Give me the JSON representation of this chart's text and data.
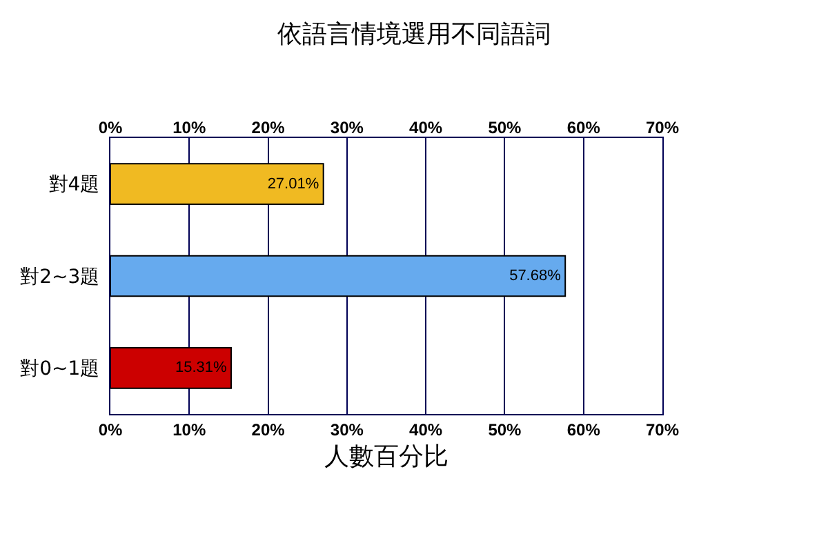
{
  "chart_data": {
    "type": "bar",
    "orientation": "horizontal",
    "title": "依語言情境選用不同語詞",
    "xlabel": "人數百分比",
    "categories": [
      "對4題",
      "對2~3題",
      "對0~1題"
    ],
    "values": [
      27.01,
      57.68,
      15.31
    ],
    "colors": [
      "#f0ba22",
      "#66aaee",
      "#cc0000"
    ],
    "value_labels": [
      "27.01%",
      "57.68%",
      "15.31%"
    ],
    "xlim": [
      0,
      70
    ],
    "xticks": [
      {
        "value": 0,
        "label": "0%"
      },
      {
        "value": 10,
        "label": "10%"
      },
      {
        "value": 20,
        "label": "20%"
      },
      {
        "value": 30,
        "label": "30%"
      },
      {
        "value": 40,
        "label": "40%"
      },
      {
        "value": 50,
        "label": "50%"
      },
      {
        "value": 60,
        "label": "60%"
      },
      {
        "value": 70,
        "label": "70%"
      }
    ],
    "x2lim": [
      0,
      70
    ],
    "x2ticks": [
      {
        "value": 0,
        "label": "0%"
      },
      {
        "value": 10,
        "label": "10%"
      },
      {
        "value": 20,
        "label": "20%"
      },
      {
        "value": 30,
        "label": "30%"
      },
      {
        "value": 40,
        "label": "40%"
      },
      {
        "value": 50,
        "label": "50%"
      },
      {
        "value": 60,
        "label": "60%"
      },
      {
        "value": 70,
        "label": "70%"
      }
    ],
    "grid": "x"
  }
}
